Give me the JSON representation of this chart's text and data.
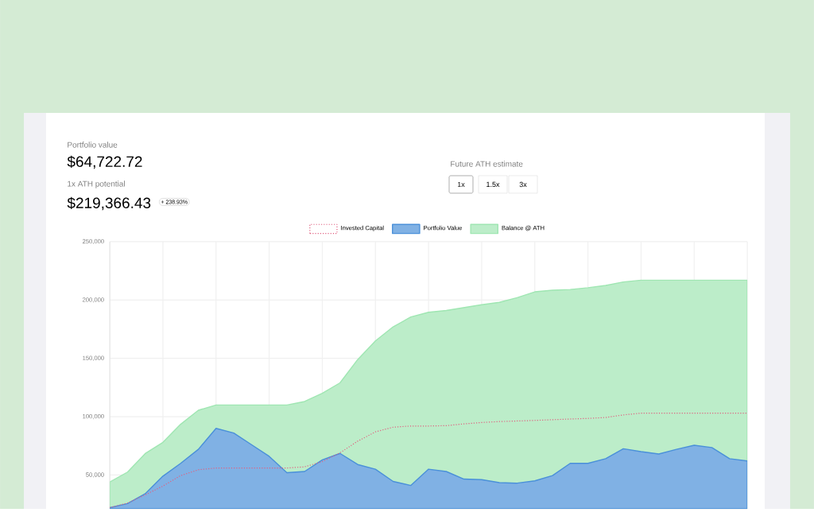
{
  "chart_data": {
    "type": "area",
    "annotations": [
      "Portfolio value",
      "$64,722.72",
      "1x ATH potential",
      "$219,366.43",
      "+ 238.93%",
      "Future ATH estimate",
      "1x",
      "1.5x",
      "3x"
    ],
    "categories": [
      null,
      null,
      null,
      null,
      null,
      null,
      null,
      null,
      null,
      null,
      null,
      null,
      null,
      null,
      null,
      null,
      null,
      null,
      null,
      null,
      null,
      null,
      null,
      null,
      null,
      null,
      null,
      null,
      null,
      null,
      null,
      null,
      null,
      null,
      null,
      null,
      null
    ],
    "ylim": [
      21000,
      250000
    ],
    "yticks": [
      {
        "value": 50000,
        "label": "50,000"
      },
      {
        "value": 100000,
        "label": "100,000"
      },
      {
        "value": 150000,
        "label": "150,000"
      },
      {
        "value": 200000,
        "label": "200,000"
      },
      {
        "value": 250000,
        "label": "250,000"
      }
    ],
    "tick_labels": "y",
    "grid": true,
    "legend": "top",
    "series": [
      {
        "name": "Invested Capital",
        "type": "line",
        "line_style": "dotted",
        "color": "#e06080",
        "values": [
          22000,
          26000,
          33000,
          40500,
          49500,
          54500,
          56000,
          56000,
          56000,
          56000,
          56000,
          57000,
          61500,
          69000,
          79000,
          87000,
          91000,
          92000,
          92000,
          92300,
          93800,
          95000,
          95800,
          96300,
          96800,
          97400,
          98000,
          98500,
          99300,
          101500,
          103000,
          103000,
          103000,
          103000,
          103000,
          103000,
          103000
        ]
      },
      {
        "name": "Portfolio Value",
        "line_style": "solid",
        "color": "#4a90d9",
        "values": [
          22000,
          25500,
          34000,
          49000,
          60000,
          72000,
          90000,
          86000,
          76000,
          66000,
          52000,
          53000,
          63000,
          68500,
          59000,
          55000,
          44500,
          41000,
          55000,
          53000,
          46500,
          46000,
          43500,
          43000,
          45000,
          49500,
          60000,
          60000,
          64000,
          72500,
          70000,
          68000,
          72000,
          75500,
          73500,
          64000,
          62000
        ]
      },
      {
        "name": "Balance @ ATH",
        "line_style": "solid",
        "color": "#9fe6b2",
        "values": [
          44000,
          52500,
          68400,
          78000,
          93500,
          105500,
          110000,
          110000,
          110000,
          110000,
          110000,
          113000,
          120000,
          129000,
          149000,
          165000,
          177000,
          185500,
          189500,
          191000,
          193500,
          196000,
          198000,
          202000,
          207000,
          208400,
          209000,
          210500,
          212500,
          215500,
          217000,
          217000,
          217000,
          217000,
          217000,
          217000,
          217000
        ]
      }
    ]
  }
}
